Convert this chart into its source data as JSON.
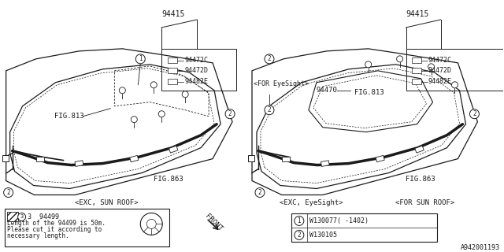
{
  "bg_color": "#ffffff",
  "line_color": "#1a1a1a",
  "part_numbers": {
    "left_top": "94415",
    "right_top": "94415",
    "left_parts": [
      "94472C",
      "94472D",
      "94482E"
    ],
    "right_parts": [
      "94472C",
      "94472D",
      "94482E"
    ],
    "center_part": "94470",
    "wire_legend1": "W130077( -1402)",
    "wire_legend2": "W130105"
  },
  "labels": {
    "fig813_left": "FIG.813",
    "fig863_left": "FIG.863",
    "fig813_right": "FIG.813",
    "fig863_right": "FIG.863",
    "exc_sunroof": "<EXC, SUN ROOF>",
    "exc_eyesight": "<EXC, EyeSight>",
    "for_sunroof": "<FOR SUN ROOF>",
    "for_eyesight": "<FOR EyeSight>",
    "front_label": "FRONT",
    "note_1": "3  94499",
    "note_2": "Length of the 94499 is 50m.",
    "note_3": "Please cut it according to",
    "note_4": "necessary length."
  },
  "diagram_id": "A942001193"
}
